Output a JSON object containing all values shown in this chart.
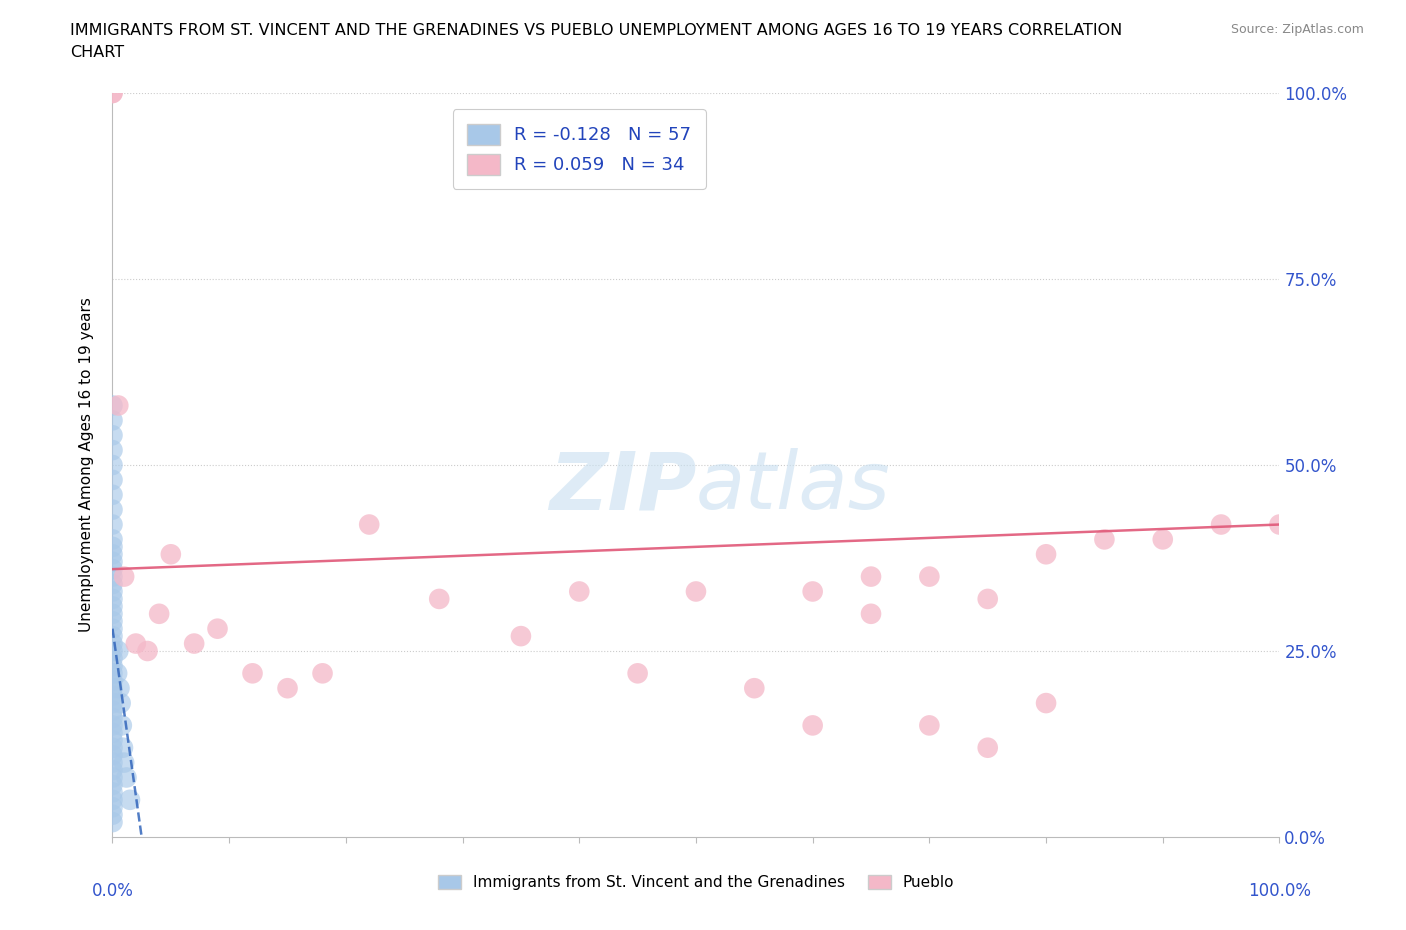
{
  "title_line1": "IMMIGRANTS FROM ST. VINCENT AND THE GRENADINES VS PUEBLO UNEMPLOYMENT AMONG AGES 16 TO 19 YEARS CORRELATION",
  "title_line2": "CHART",
  "source": "Source: ZipAtlas.com",
  "ylabel": "Unemployment Among Ages 16 to 19 years",
  "blue_color": "#a8c8e8",
  "pink_color": "#f4b8c8",
  "blue_line_color": "#3366bb",
  "pink_line_color": "#e05878",
  "watermark_color": "#c8dff0",
  "legend_label1": "Immigrants from St. Vincent and the Grenadines",
  "legend_label2": "Pueblo",
  "blue_R": -0.128,
  "blue_N": 57,
  "pink_R": 0.059,
  "pink_N": 34,
  "blue_dots_x": [
    0.0,
    0.0,
    0.0,
    0.0,
    0.0,
    0.0,
    0.0,
    0.0,
    0.0,
    0.0,
    0.0,
    0.0,
    0.0,
    0.0,
    0.0,
    0.0,
    0.0,
    0.0,
    0.0,
    0.0,
    0.0,
    0.0,
    0.0,
    0.0,
    0.0,
    0.0,
    0.0,
    0.0,
    0.0,
    0.0,
    0.0,
    0.0,
    0.0,
    0.0,
    0.0,
    0.0,
    0.0,
    0.0,
    0.0,
    0.0,
    0.0,
    0.0,
    0.0,
    0.0,
    0.0,
    0.0,
    0.0,
    0.0,
    0.4,
    0.5,
    0.6,
    0.7,
    0.8,
    0.9,
    1.0,
    1.2,
    1.5
  ],
  "blue_dots_y": [
    2,
    3,
    4,
    5,
    6,
    7,
    8,
    9,
    10,
    11,
    12,
    13,
    14,
    15,
    16,
    17,
    18,
    19,
    20,
    21,
    22,
    23,
    24,
    25,
    26,
    27,
    28,
    29,
    30,
    31,
    32,
    33,
    34,
    35,
    36,
    37,
    38,
    39,
    40,
    42,
    44,
    46,
    48,
    50,
    52,
    54,
    56,
    58,
    22,
    25,
    20,
    18,
    15,
    12,
    10,
    8,
    5
  ],
  "pink_dots_x": [
    0.0,
    0.0,
    0.5,
    1.0,
    2.0,
    3.0,
    4.0,
    5.0,
    7.0,
    9.0,
    12.0,
    15.0,
    18.0,
    22.0,
    28.0,
    35.0,
    40.0,
    45.0,
    50.0,
    55.0,
    60.0,
    65.0,
    70.0,
    75.0,
    80.0,
    85.0,
    90.0,
    95.0,
    100.0,
    60.0,
    65.0,
    70.0,
    75.0,
    80.0
  ],
  "pink_dots_y": [
    100.0,
    100.0,
    58.0,
    35.0,
    26.0,
    25.0,
    30.0,
    38.0,
    26.0,
    28.0,
    22.0,
    20.0,
    22.0,
    42.0,
    32.0,
    27.0,
    33.0,
    22.0,
    33.0,
    20.0,
    15.0,
    30.0,
    15.0,
    12.0,
    38.0,
    40.0,
    40.0,
    42.0,
    42.0,
    33.0,
    35.0,
    35.0,
    32.0,
    18.0
  ],
  "pink_line_x0": 0,
  "pink_line_x1": 100,
  "pink_line_y0": 36,
  "pink_line_y1": 42,
  "blue_line_x0": 0,
  "blue_line_x1": 2.5,
  "blue_line_y0": 28,
  "blue_line_y1": 0,
  "xlim": [
    0,
    100
  ],
  "ylim": [
    0,
    100
  ],
  "xticks": [
    0,
    10,
    20,
    30,
    40,
    50,
    60,
    70,
    80,
    90,
    100
  ],
  "yticks": [
    0,
    25,
    50,
    75,
    100
  ]
}
